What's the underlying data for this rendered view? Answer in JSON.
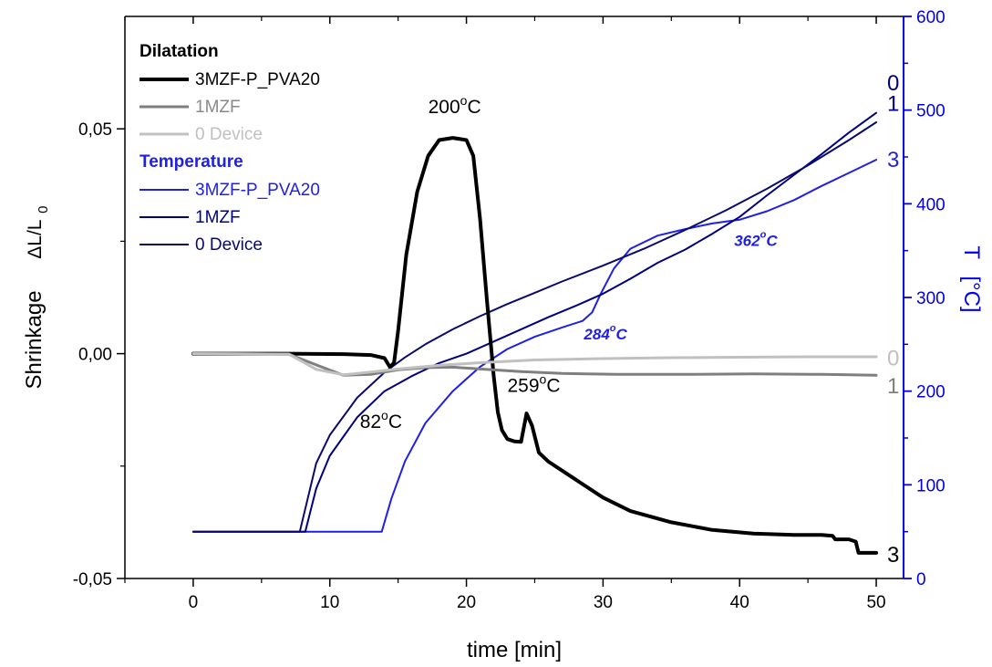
{
  "chart_data": {
    "type": "line",
    "xlabel": "time  [min]",
    "ylabel_left_main": "Shrinkage",
    "ylabel_left_sym": "ΔL/L",
    "ylabel_left_sub": "0",
    "ylabel_right_main": "T",
    "ylabel_right_unit": "[°C]",
    "xlim": [
      -5,
      52
    ],
    "ylim_left": [
      -0.05,
      0.075
    ],
    "ylim_right": [
      0,
      600
    ],
    "x_ticks": [
      0,
      10,
      20,
      30,
      40,
      50
    ],
    "x_tick_labels": [
      "0",
      "10",
      "20",
      "30",
      "40",
      "50"
    ],
    "y_left_ticks": [
      -0.05,
      0.0,
      0.05
    ],
    "y_left_tick_labels": [
      "-0,05",
      "0,00",
      "0,05"
    ],
    "y_right_ticks": [
      0,
      100,
      200,
      300,
      400,
      500,
      600
    ],
    "y_right_tick_labels": [
      "0",
      "100",
      "200",
      "300",
      "400",
      "500",
      "600"
    ],
    "legend_position": "top-left",
    "legend": {
      "dilatation_header": "Dilatation",
      "temperature_header": "Temperature"
    },
    "series": [
      {
        "name": "3MZF-P_PVA20",
        "group": "dilatation",
        "axis": "left",
        "color": "#000000",
        "width": 4,
        "x": [
          0,
          7,
          11,
          13,
          14,
          14.4,
          14.7,
          15,
          15.6,
          16.4,
          17.2,
          18,
          19,
          20,
          20.5,
          21,
          21.5,
          22,
          22.3,
          22.6,
          23,
          23.5,
          24,
          24.4,
          24.8,
          25.3,
          26,
          27,
          28,
          30,
          32,
          35,
          38,
          41,
          44,
          46,
          46.8,
          47,
          48,
          48.5,
          48.7,
          49,
          50
        ],
        "y": [
          0.0,
          0.0,
          -0.0001,
          -0.0003,
          -0.001,
          -0.003,
          -0.002,
          0.005,
          0.022,
          0.036,
          0.044,
          0.0475,
          0.048,
          0.0475,
          0.044,
          0.03,
          0.012,
          -0.005,
          -0.013,
          -0.017,
          -0.019,
          -0.0195,
          -0.0196,
          -0.0133,
          -0.016,
          -0.022,
          -0.024,
          -0.026,
          -0.028,
          -0.032,
          -0.035,
          -0.0375,
          -0.0392,
          -0.04,
          -0.0403,
          -0.0403,
          -0.0405,
          -0.0413,
          -0.0413,
          -0.0418,
          -0.0443,
          -0.0443,
          -0.0443
        ]
      },
      {
        "name": "1MZF",
        "group": "dilatation",
        "axis": "left",
        "color": "#7f7f7f",
        "width": 3,
        "x": [
          0,
          7,
          9,
          11,
          13,
          15,
          17,
          19,
          21,
          24,
          27,
          31,
          36,
          41,
          46,
          50
        ],
        "y": [
          0.0,
          -0.0001,
          -0.0025,
          -0.0048,
          -0.0046,
          -0.0036,
          -0.0031,
          -0.003,
          -0.0034,
          -0.004,
          -0.0044,
          -0.0046,
          -0.0046,
          -0.0045,
          -0.0046,
          -0.0048
        ]
      },
      {
        "name": "0 Device",
        "group": "dilatation",
        "axis": "left",
        "color": "#c0c0c0",
        "width": 3,
        "x": [
          0,
          7,
          9,
          11,
          13,
          15,
          18,
          21,
          25,
          30,
          35,
          40,
          45,
          50
        ],
        "y": [
          0.0,
          -0.0001,
          -0.0035,
          -0.0047,
          -0.0041,
          -0.0034,
          -0.0026,
          -0.002,
          -0.0014,
          -0.0011,
          -0.0009,
          -0.0008,
          -0.0007,
          -0.0007
        ]
      },
      {
        "name": "3MZF-P_PVA20",
        "group": "temperature",
        "axis": "right",
        "color": "#1f1fe6",
        "width": 2,
        "x": [
          0,
          13.8,
          14.5,
          15.5,
          17,
          19,
          21,
          23,
          25,
          27,
          28.5,
          29.2,
          29.8,
          30.8,
          32,
          34,
          36,
          38,
          40,
          42,
          44,
          46,
          48,
          50
        ],
        "y": [
          50,
          50,
          85,
          125,
          166,
          200,
          226,
          245,
          258,
          268,
          275,
          284,
          303,
          331,
          352,
          366,
          373,
          379,
          383,
          392,
          404,
          419,
          433,
          447
        ]
      },
      {
        "name": "1MZF",
        "group": "temperature",
        "axis": "right",
        "color": "#000080",
        "width": 2,
        "x": [
          0,
          8.2,
          9,
          10,
          12,
          14,
          16,
          18,
          20,
          22,
          24,
          26,
          28,
          30,
          32,
          34,
          36,
          38,
          40,
          42,
          44,
          46,
          48,
          50
        ],
        "y": [
          50,
          50,
          96,
          131,
          172,
          200,
          216,
          230,
          240,
          253,
          266,
          279,
          291,
          304,
          320,
          337,
          351,
          368,
          386,
          409,
          431,
          453,
          476,
          497
        ]
      },
      {
        "name": "0 Device",
        "group": "temperature",
        "axis": "right",
        "color": "#0a0a6e",
        "width": 2,
        "x": [
          0,
          7.8,
          9,
          10,
          12,
          14,
          15.5,
          17,
          19,
          21,
          23,
          25,
          27,
          30,
          33,
          36,
          39,
          42,
          45,
          48,
          50
        ],
        "y": [
          50,
          50,
          123,
          153,
          193,
          220,
          236,
          250,
          266,
          280,
          293,
          305,
          317,
          334,
          352,
          372,
          393,
          416,
          441,
          468,
          487
        ]
      }
    ],
    "annotations": [
      {
        "id": "a200",
        "base": "200",
        "sup": "o",
        "suffix": "C",
        "x": 17.2,
        "y_left": 0.0535,
        "color": "#000000",
        "style": "normal"
      },
      {
        "id": "a82",
        "base": "82",
        "sup": "o",
        "suffix": "C",
        "x": 12.2,
        "y_left": -0.0165,
        "color": "#000000",
        "style": "normal"
      },
      {
        "id": "a259",
        "base": "259",
        "sup": "o",
        "suffix": "C",
        "x": 23.0,
        "y_left": -0.0085,
        "color": "#000000",
        "style": "normal"
      },
      {
        "id": "a284",
        "base": "284",
        "sup": "o",
        "suffix": "C",
        "x": 28.6,
        "y_right": 255,
        "color": "#1f1fe6",
        "style": "blue"
      },
      {
        "id": "a362",
        "base": "362",
        "sup": "o",
        "suffix": "C",
        "x": 39.6,
        "y_right": 355,
        "color": "#1f1fe6",
        "style": "blue"
      }
    ],
    "end_labels": [
      {
        "id": "e0top",
        "text": "0",
        "x": 50.8,
        "y_right": 530,
        "color": "#000080"
      },
      {
        "id": "e1top",
        "text": "1",
        "x": 50.8,
        "y_right": 508,
        "color": "#000080"
      },
      {
        "id": "e3top",
        "text": "3",
        "x": 50.8,
        "y_right": 448,
        "color": "#1f1fe6"
      },
      {
        "id": "e0bot",
        "text": "0",
        "x": 50.8,
        "y_left": -0.0008,
        "color": "#bfbfbf"
      },
      {
        "id": "e1bot",
        "text": "1",
        "x": 50.8,
        "y_left": -0.007,
        "color": "#7f7f7f"
      },
      {
        "id": "e3bot",
        "text": "3",
        "x": 50.8,
        "y_left": -0.0445,
        "color": "#000000"
      }
    ]
  }
}
